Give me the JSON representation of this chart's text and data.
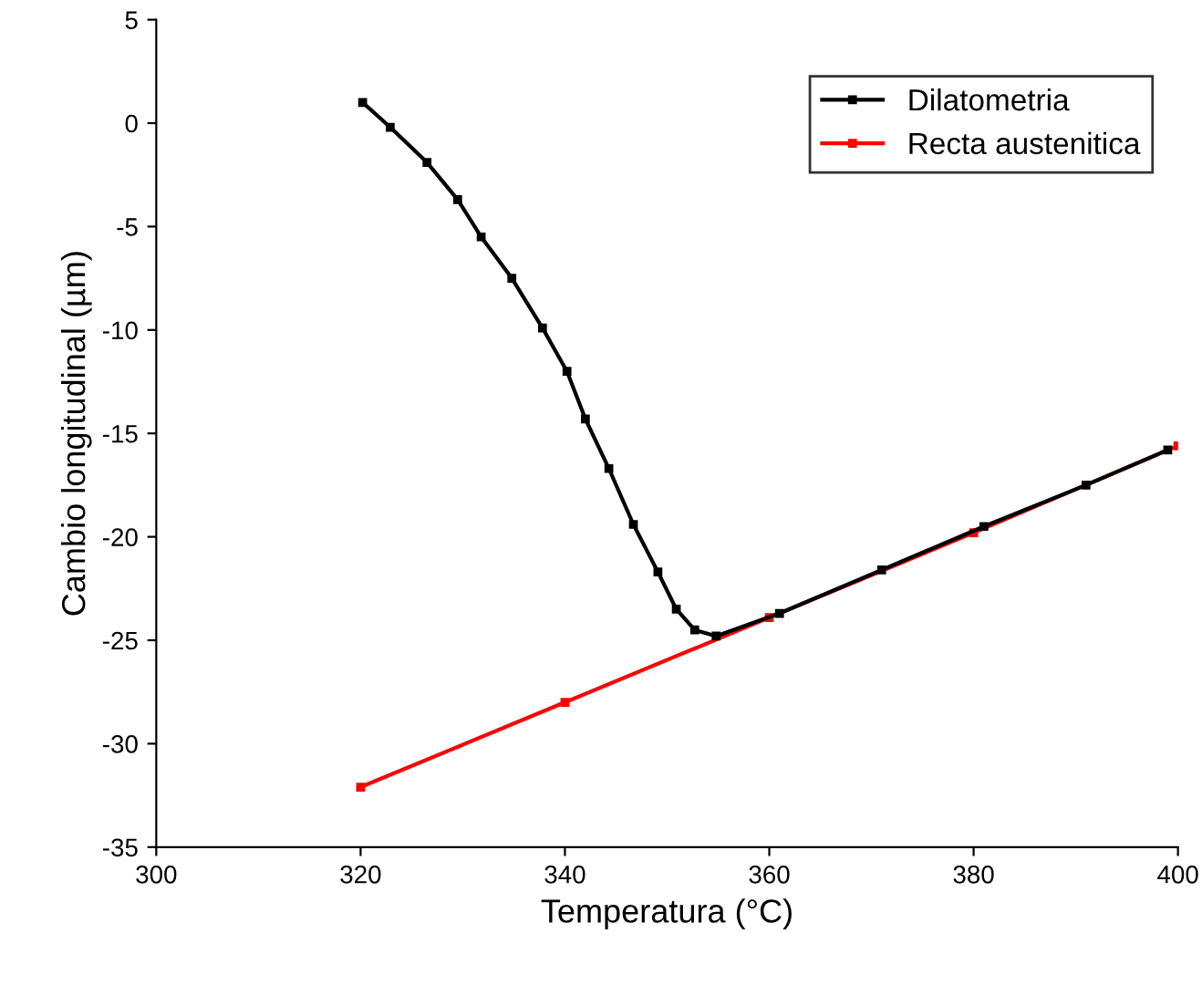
{
  "chart_data": {
    "type": "line",
    "xlabel": "Temperatura (°C)",
    "ylabel": "Cambio longitudinal (µm)",
    "xlim": [
      300,
      400
    ],
    "xticks": [
      300,
      320,
      340,
      360,
      380,
      400
    ],
    "ylim": [
      -35,
      5
    ],
    "yticks": [
      -35,
      -30,
      -25,
      -20,
      -15,
      -10,
      -5,
      0,
      5
    ],
    "grid": false,
    "legend": "top right",
    "marker": "square",
    "series": [
      {
        "name": "Dilatometria",
        "color": "#000000",
        "x": [
          320.2,
          322.9,
          326.5,
          329.5,
          331.8,
          334.8,
          337.8,
          340.2,
          342.0,
          344.3,
          346.7,
          349.1,
          350.9,
          352.7,
          354.8,
          361,
          371,
          381,
          391,
          399
        ],
        "values": [
          1.0,
          -0.2,
          -1.9,
          -3.7,
          -5.5,
          -7.5,
          -9.9,
          -12.0,
          -14.3,
          -16.7,
          -19.4,
          -21.7,
          -23.5,
          -24.5,
          -24.8,
          -23.7,
          -21.6,
          -19.5,
          -17.5,
          -15.8
        ]
      },
      {
        "name": "Recta austenitica",
        "color": "#ff0000",
        "x": [
          320,
          340,
          360,
          380,
          400
        ],
        "values": [
          -32.1,
          -28.0,
          -23.9,
          -19.8,
          -15.6
        ]
      }
    ]
  }
}
